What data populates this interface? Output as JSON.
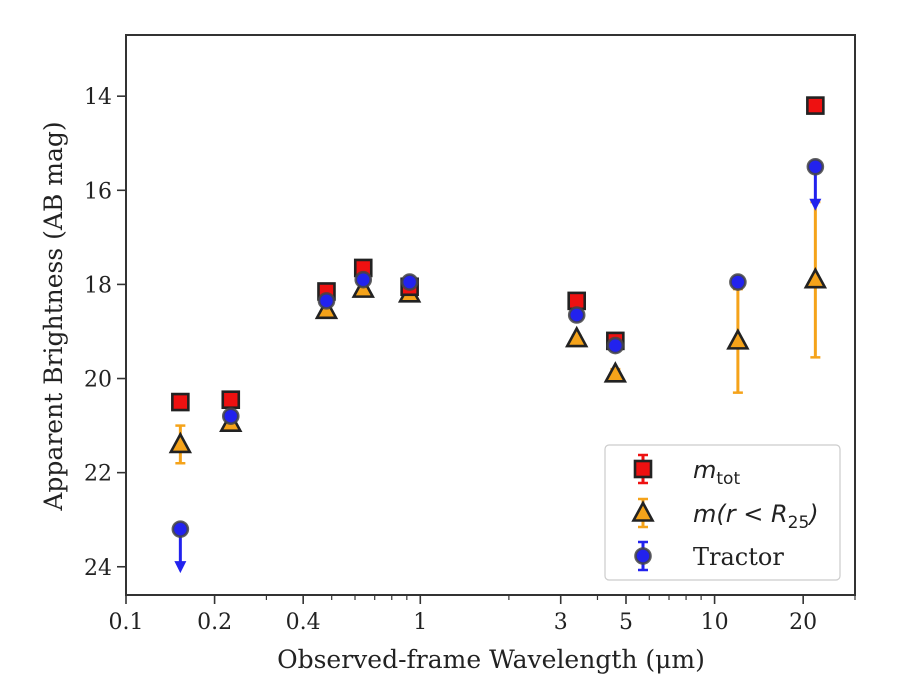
{
  "chart_data": {
    "type": "scatter",
    "xlabel": "Observed-frame Wavelength (μm)",
    "ylabel": "Apparent Brightness (AB mag)",
    "x_scale": "log",
    "xlim": [
      0.1,
      30
    ],
    "ylim": [
      24.6,
      12.7
    ],
    "y_inverted": true,
    "x_ticks": [
      {
        "value": 0.1,
        "label": "0.1"
      },
      {
        "value": 0.2,
        "label": "0.2"
      },
      {
        "value": 0.4,
        "label": "0.4"
      },
      {
        "value": 1,
        "label": "1"
      },
      {
        "value": 3,
        "label": "3"
      },
      {
        "value": 5,
        "label": "5"
      },
      {
        "value": 10,
        "label": "10"
      },
      {
        "value": 20,
        "label": "20"
      }
    ],
    "y_ticks": [
      {
        "value": 14,
        "label": "14"
      },
      {
        "value": 16,
        "label": "16"
      },
      {
        "value": 18,
        "label": "18"
      },
      {
        "value": 20,
        "label": "20"
      },
      {
        "value": 22,
        "label": "22"
      },
      {
        "value": 24,
        "label": "24"
      }
    ],
    "legend_position": "lower-right",
    "series": [
      {
        "name": "m_tot",
        "legend_main": "m",
        "legend_sub": "tot",
        "marker": "square",
        "face_color": "#ee1111",
        "edge_color": "#222222",
        "err_color": "#ee1111",
        "points": [
          {
            "x": 0.153,
            "y": 20.5,
            "err": 0.06
          },
          {
            "x": 0.227,
            "y": 20.45,
            "err": 0.06
          },
          {
            "x": 0.48,
            "y": 18.15,
            "err": 0.06
          },
          {
            "x": 0.64,
            "y": 17.65,
            "err": 0.06
          },
          {
            "x": 0.92,
            "y": 18.05,
            "err": 0.06
          },
          {
            "x": 3.4,
            "y": 18.35,
            "err": 0.06
          },
          {
            "x": 4.6,
            "y": 19.2,
            "err": 0.06
          },
          {
            "x": 22.0,
            "y": 14.2,
            "err": 0.06
          }
        ]
      },
      {
        "name": "m(r < R25)",
        "legend_main": "m(r < R",
        "legend_sub": "25",
        "legend_tail": ")",
        "marker": "triangle",
        "face_color": "#f5a31a",
        "edge_color": "#222222",
        "err_color": "#f5a31a",
        "points": [
          {
            "x": 0.153,
            "y": 21.4,
            "err": 0.4
          },
          {
            "x": 0.227,
            "y": 20.95,
            "err": 0.08
          },
          {
            "x": 0.48,
            "y": 18.55,
            "err": 0.06
          },
          {
            "x": 0.64,
            "y": 18.1,
            "err": 0.06
          },
          {
            "x": 0.92,
            "y": 18.2,
            "err": 0.06
          },
          {
            "x": 3.4,
            "y": 19.15,
            "err": 0.06
          },
          {
            "x": 4.6,
            "y": 19.9,
            "err": 0.1
          },
          {
            "x": 12.0,
            "y": 19.2,
            "err": 1.1
          },
          {
            "x": 22.0,
            "y": 17.9,
            "err": 1.65
          }
        ]
      },
      {
        "name": "Tractor",
        "legend_main": "Tractor",
        "marker": "circle",
        "face_color": "#2222ee",
        "edge_color": "#444444",
        "err_color": "#2222ee",
        "points": [
          {
            "x": 0.153,
            "y": 23.2,
            "upper_limit": true
          },
          {
            "x": 0.227,
            "y": 20.8,
            "err": 0.08
          },
          {
            "x": 0.48,
            "y": 18.35,
            "err": 0.06
          },
          {
            "x": 0.64,
            "y": 17.9,
            "err": 0.06
          },
          {
            "x": 0.92,
            "y": 17.95,
            "err": 0.06
          },
          {
            "x": 3.4,
            "y": 18.65,
            "err": 0.06
          },
          {
            "x": 4.6,
            "y": 19.3,
            "err": 0.06
          },
          {
            "x": 12.0,
            "y": 17.95,
            "err": 0.06
          },
          {
            "x": 22.0,
            "y": 15.5,
            "upper_limit": true
          }
        ]
      }
    ]
  }
}
